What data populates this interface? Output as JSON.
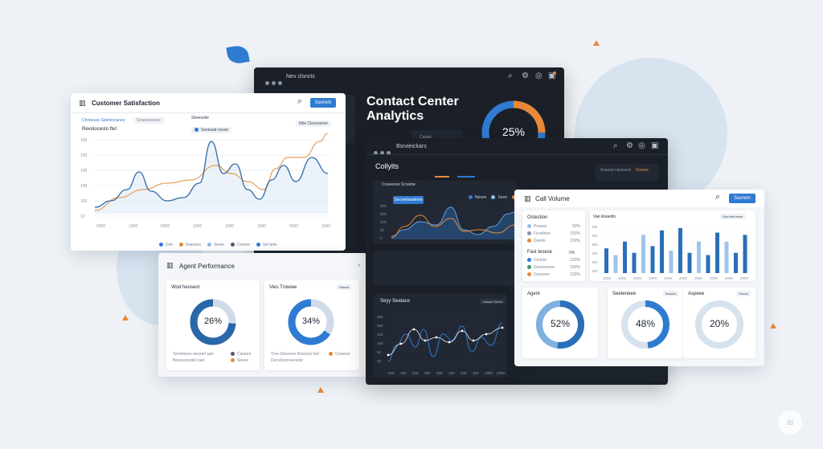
{
  "colors": {
    "accent": "#2f7bd1",
    "orange": "#e8893a",
    "dark_bg": "#1b2028",
    "light_bg": "#ffffff",
    "blue_light": "#8fbde6"
  },
  "dark_main": {
    "toolbar_title": "Nev clsncts",
    "headline_1": "Contact Center",
    "headline_2": "Analytics",
    "donut_value": "25%",
    "stat_label": "Cataat"
  },
  "customer": {
    "title": "Customer Satisfaction",
    "button": "Savrem",
    "subtitle_left": "Cteniesss Satsfeccanes",
    "subtitle_mid": "Soaureecaoe",
    "subtitle_right": "Sbeeselle",
    "chart_title": "Revolocesto ftet",
    "legend_toggle": "Sesesad cesoe",
    "filter": "Nhe Clesceeroe",
    "y_ticks": [
      "100",
      "100",
      "100",
      "100",
      "100",
      "10"
    ],
    "x_ticks": [
      "5000",
      "1000",
      "5000",
      "1000",
      "1000",
      "1000",
      "5000",
      "1000"
    ],
    "legend": [
      "Dell",
      "Seesees",
      "Seeie",
      "Cloeee",
      "Sel teier"
    ]
  },
  "agent_perf": {
    "title": "Agent Performance",
    "card1_title": "Wod heoseot",
    "card1_value": "26%",
    "card1_leg_a": "Teerboeeo seeserl tael",
    "card1_leg_b": "Beessonsdel cael",
    "card1_leg_c": "Caseeo",
    "card1_leg_d": "Seese",
    "card2_title": "Vies Trowiee",
    "card2_badge": "Seecel",
    "card2_value": "34%",
    "card2_leg_a": "Tree Glveeers Boeceor bot",
    "card2_leg_b": "Decelecreveesete",
    "card2_leg_c": "Ceseeer"
  },
  "collylts": {
    "toolbar_title": "Bsrvieickars",
    "title": "Collylts",
    "topright_a": "Ssaosd casseeot",
    "topright_b": "Sceere",
    "chart_badge": "Coseeose Scvame",
    "chart_button": "Secreeteademe",
    "legend": [
      "Nesee",
      "Seee",
      "Seeee"
    ],
    "y_ticks": [
      "300",
      "250",
      "220",
      "20",
      "0"
    ],
    "x_ticks": [
      "1000",
      "2000",
      "2000",
      "1000",
      "2000",
      "2000",
      "1000"
    ],
    "cards": [
      {
        "title": "Call Volume",
        "a": "Cesee",
        "b": "Seccee Sbon"
      },
      {
        "title": "Call Ilems",
        "a": "Seae",
        "b": "Seeee Sean"
      },
      {
        "title": "Ostelt Itee",
        "a": "Ceesee",
        "b": "Seecesee Ser"
      }
    ],
    "bottom_title": "Seyy Seatace",
    "bottom_badge": "Cataoe Seeve",
    "bottom_y": [
      "200",
      "150",
      "120",
      "100",
      "50",
      "10"
    ],
    "bottom_x": [
      "200",
      "100",
      "200",
      "300",
      "300",
      "100",
      "100",
      "200",
      "1000",
      "2000"
    ]
  },
  "call_volume": {
    "title": "Call Volume",
    "button": "Savrem",
    "left_title": "Ostection",
    "left_rows": [
      {
        "label": "Pssees",
        "value": "50%"
      },
      {
        "label": "Feooleee",
        "value": "150%"
      },
      {
        "label": "Deede",
        "value": "150%"
      }
    ],
    "left_title_2": "Fast tesese",
    "left_val_2": "0%",
    "left_rows_2": [
      {
        "label": "Ceoele",
        "value": "150%"
      },
      {
        "label": "Geeeeeeee",
        "value": "150%"
      },
      {
        "label": "Ceseeee",
        "value": "150%"
      }
    ],
    "bar_title": "Vae klsaedis",
    "bar_badge": "Sacl iset eeoe",
    "bar_y": [
      "400",
      "300",
      "380",
      "200",
      "150",
      "100"
    ],
    "bar_x": [
      "2000",
      "2000",
      "2000",
      "2000",
      "2000",
      "2000",
      "2000",
      "2000",
      "2000",
      "2000"
    ],
    "bar_values": [
      55,
      40,
      70,
      45,
      85,
      60,
      95,
      50,
      100,
      45,
      70,
      40,
      90,
      70,
      45,
      85
    ],
    "donuts": [
      {
        "title": "Agent",
        "badge": "",
        "value": "52%",
        "fraction": 0.52
      },
      {
        "title": "Seeteneee",
        "badge": "Ssecee",
        "value": "48%",
        "fraction": 0.48
      },
      {
        "title": "Aspeee",
        "badge": "Seeoe",
        "value": "20%",
        "fraction": 0.2
      }
    ]
  },
  "donut_fractions": {
    "dark_main": 0.25,
    "agent_a": 0.26,
    "agent_b": 0.34
  },
  "watermark": "ai"
}
